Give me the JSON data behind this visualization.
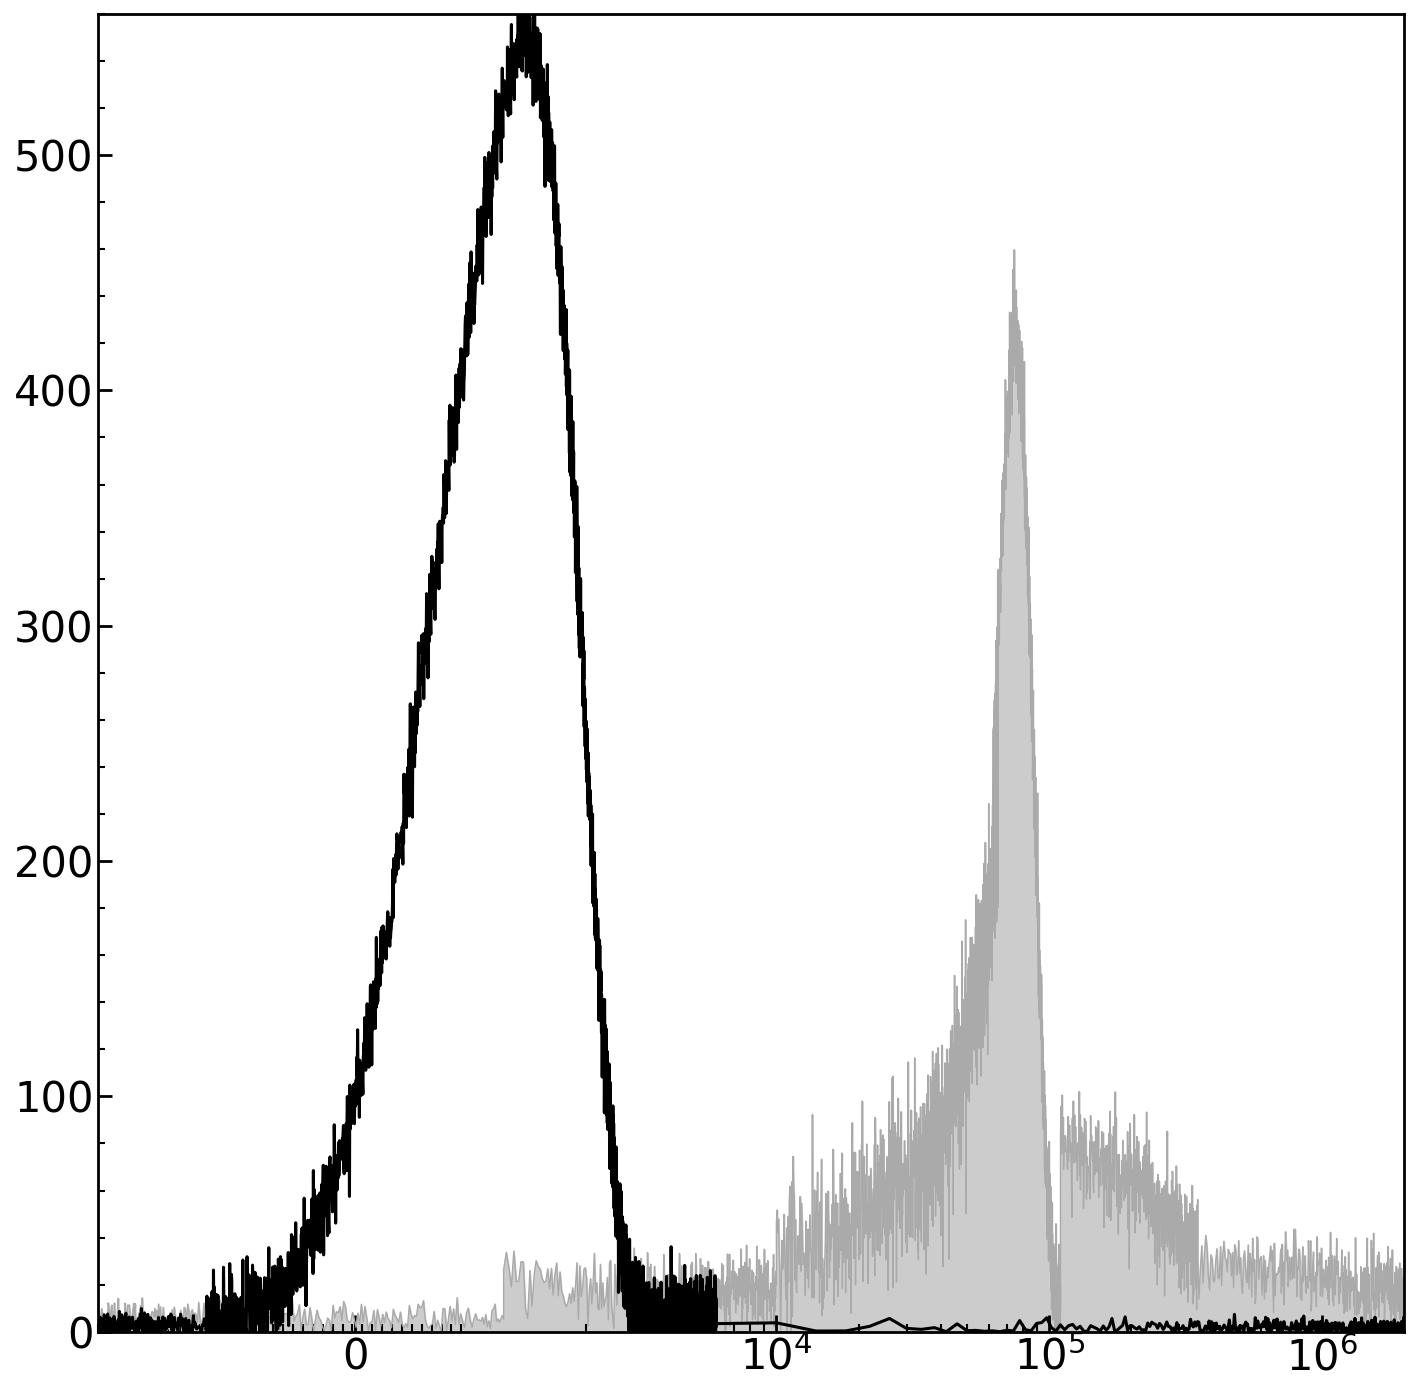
{
  "background_color": "#ffffff",
  "ylim": [
    0,
    560
  ],
  "yticks": [
    0,
    100,
    200,
    300,
    400,
    500
  ],
  "gray_fill_color": "#cccccc",
  "gray_edge_color": "#aaaaaa",
  "black_line_color": "#000000",
  "linewidth_black": 2.2,
  "linewidth_gray": 1.0,
  "xlim_left": -2500,
  "xlim_right": 2000000,
  "linthresh": 700,
  "linscale": 0.35
}
